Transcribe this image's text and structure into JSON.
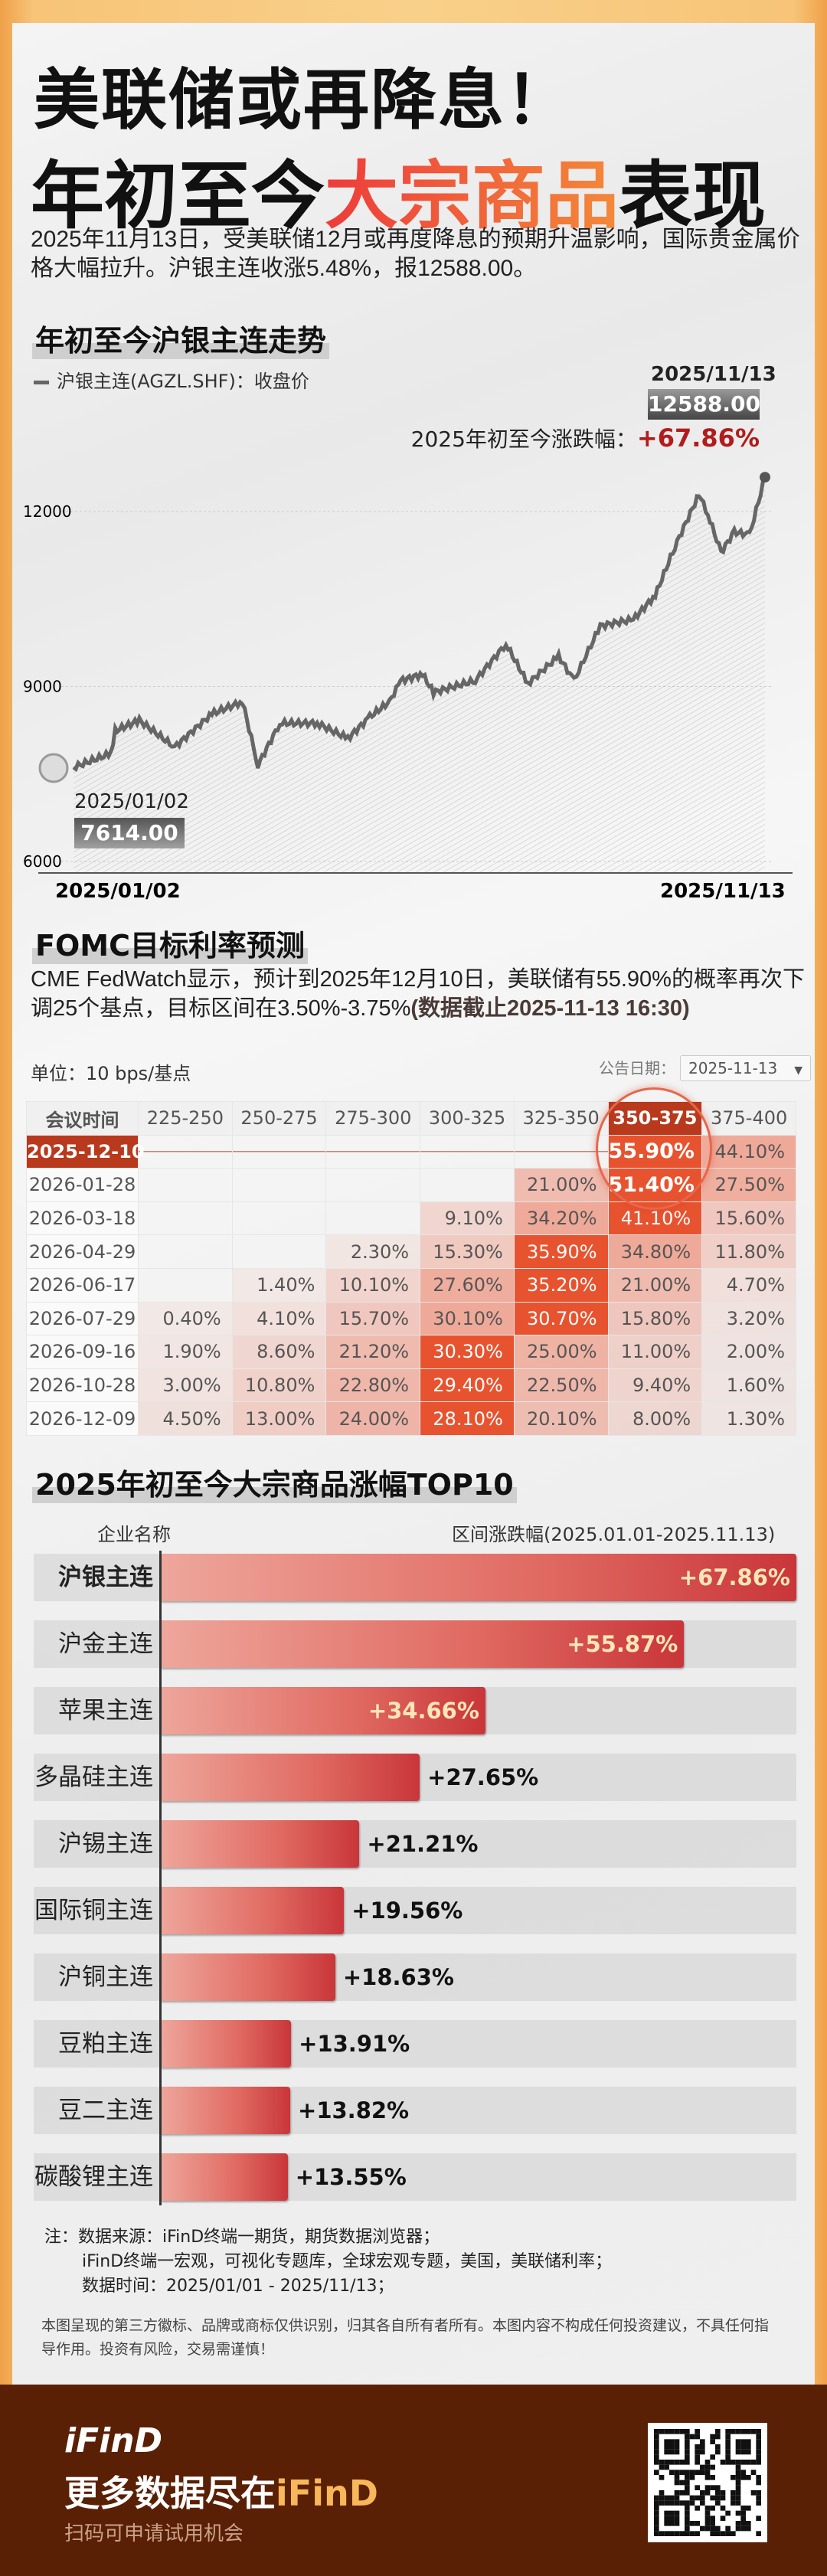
{
  "header": {
    "title_line1": "美联储或再降息！",
    "title_line2_pre": "年初至今",
    "title_line2_highlight": "大宗商品",
    "title_line2_post": "表现",
    "intro": "2025年11月13日，受美联储12月或再度降息的预期升温影响，国际贵金属价格大幅拉升。沪银主连收涨5.48%，报12588.00。"
  },
  "silver_section": {
    "heading": "年初至今沪银主连走势",
    "legend": "沪银主连(AGZL.SHF)：收盘价",
    "end_date": "2025/11/13",
    "end_value": "12588.00",
    "ytd_label": "2025年初至今涨跌幅：",
    "ytd_value": "+67.86%",
    "start_date": "2025/01/02",
    "start_value": "7614.00"
  },
  "chart_data": {
    "type": "area",
    "series_label": "沪银主连(AGZL.SHF)：收盘价",
    "x": [
      "2025-01-02",
      "2025-01-19",
      "2025-01-21",
      "2025-02-01",
      "2025-02-17",
      "2025-03-06",
      "2025-03-20",
      "2025-03-27",
      "2025-04-06",
      "2025-04-23",
      "2025-05-07",
      "2025-05-17",
      "2025-05-26",
      "2025-05-31",
      "2025-06-10",
      "2025-06-15",
      "2025-07-04",
      "2025-07-18",
      "2025-07-28",
      "2025-08-11",
      "2025-08-18",
      "2025-08-30",
      "2025-09-14",
      "2025-09-24",
      "2025-10-03",
      "2025-10-14",
      "2025-10-18",
      "2025-10-24",
      "2025-10-30",
      "2025-11-06",
      "2025-11-13"
    ],
    "y": [
      7614,
      7850,
      8240,
      8420,
      7960,
      8530,
      8740,
      7650,
      8370,
      8370,
      8110,
      8480,
      8740,
      9100,
      9210,
      8900,
      9100,
      9730,
      9050,
      9520,
      9100,
      10040,
      10150,
      10560,
      11400,
      12300,
      11950,
      11300,
      11650,
      11600,
      12588
    ],
    "ylim": [
      6000,
      13200
    ],
    "yticks": [
      "6000",
      "9000",
      "12000"
    ],
    "xtick_labels": [
      "2025/01/02",
      "2025/11/13"
    ],
    "grid": true,
    "accent_color": "#666666"
  },
  "fomc": {
    "heading": "FOMC目标利率预测",
    "desc_text": "CME  FedWatch显示，预计到2025年12月10日，美联储有55.90%的概率再次下调25个基点，目标区间在3.50%-3.75%",
    "desc_bold": "(数据截止2025-11-13 16:30)",
    "unit": "单位：10 bps/基点",
    "pub_label": "公告日期：",
    "pub_value": "2025-11-13",
    "columns": [
      "会议时间",
      "225-250",
      "250-275",
      "275-300",
      "300-325",
      "325-350",
      "350-375",
      "375-400"
    ],
    "rows": [
      [
        "2025-12-10",
        "",
        "",
        "",
        "",
        "",
        "55.90%",
        "44.10%"
      ],
      [
        "2026-01-28",
        "",
        "",
        "",
        "",
        "21.00%",
        "51.40%",
        "27.50%"
      ],
      [
        "2026-03-18",
        "",
        "",
        "",
        "9.10%",
        "34.20%",
        "41.10%",
        "15.60%"
      ],
      [
        "2026-04-29",
        "",
        "",
        "2.30%",
        "15.30%",
        "35.90%",
        "34.80%",
        "11.80%"
      ],
      [
        "2026-06-17",
        "",
        "1.40%",
        "10.10%",
        "27.60%",
        "35.20%",
        "21.00%",
        "4.70%"
      ],
      [
        "2026-07-29",
        "0.40%",
        "4.10%",
        "15.70%",
        "30.10%",
        "30.70%",
        "15.80%",
        "3.20%"
      ],
      [
        "2026-09-16",
        "1.90%",
        "8.60%",
        "21.20%",
        "30.30%",
        "25.00%",
        "11.00%",
        "2.00%"
      ],
      [
        "2026-10-28",
        "3.00%",
        "10.80%",
        "22.80%",
        "29.40%",
        "22.50%",
        "9.40%",
        "1.60%"
      ],
      [
        "2026-12-09",
        "4.50%",
        "13.00%",
        "24.00%",
        "28.10%",
        "20.10%",
        "8.00%",
        "1.30%"
      ]
    ],
    "highlight_color": "#e8532f",
    "highlight_dark": "#b8391c"
  },
  "top10": {
    "heading": "2025年初至今大宗商品涨幅TOP10",
    "col_name": "企业名称",
    "col_value": "区间涨跌幅(2025.01.01-2025.11.13)",
    "items": [
      {
        "name": "沪银主连",
        "value": 67.86,
        "label": "+67.86%"
      },
      {
        "name": "沪金主连",
        "value": 55.87,
        "label": "+55.87%"
      },
      {
        "name": "苹果主连",
        "value": 34.66,
        "label": "+34.66%"
      },
      {
        "name": "多晶硅主连",
        "value": 27.65,
        "label": "+27.65%"
      },
      {
        "name": "沪锡主连",
        "value": 21.21,
        "label": "+21.21%"
      },
      {
        "name": "国际铜主连",
        "value": 19.56,
        "label": "+19.56%"
      },
      {
        "name": "沪铜主连",
        "value": 18.63,
        "label": "+18.63%"
      },
      {
        "name": "豆粕主连",
        "value": 13.91,
        "label": "+13.91%"
      },
      {
        "name": "豆二主连",
        "value": 13.82,
        "label": "+13.82%"
      },
      {
        "name": "碳酸锂主连",
        "value": 13.55,
        "label": "+13.55%"
      }
    ]
  },
  "notes": {
    "line1": "注：数据来源：iFinD终端一期货，期货数据浏览器；",
    "line2": "iFinD终端一宏观，可视化专题库，全球宏观专题，美国，美联储利率；",
    "line3": "数据时间：2025/01/01 - 2025/11/13；",
    "disclaimer": "本图呈现的第三方徽标、品牌或商标仅供识别，归其各自所有者所有。本图内容不构成任何投资建议，不具任何指导作用。投资有风险，交易需谨慎！"
  },
  "footer": {
    "logo": "iFinD",
    "slogan_pre": "更多数据尽在",
    "slogan_brand": "iFinD",
    "sub": "扫码可申请试用机会"
  }
}
